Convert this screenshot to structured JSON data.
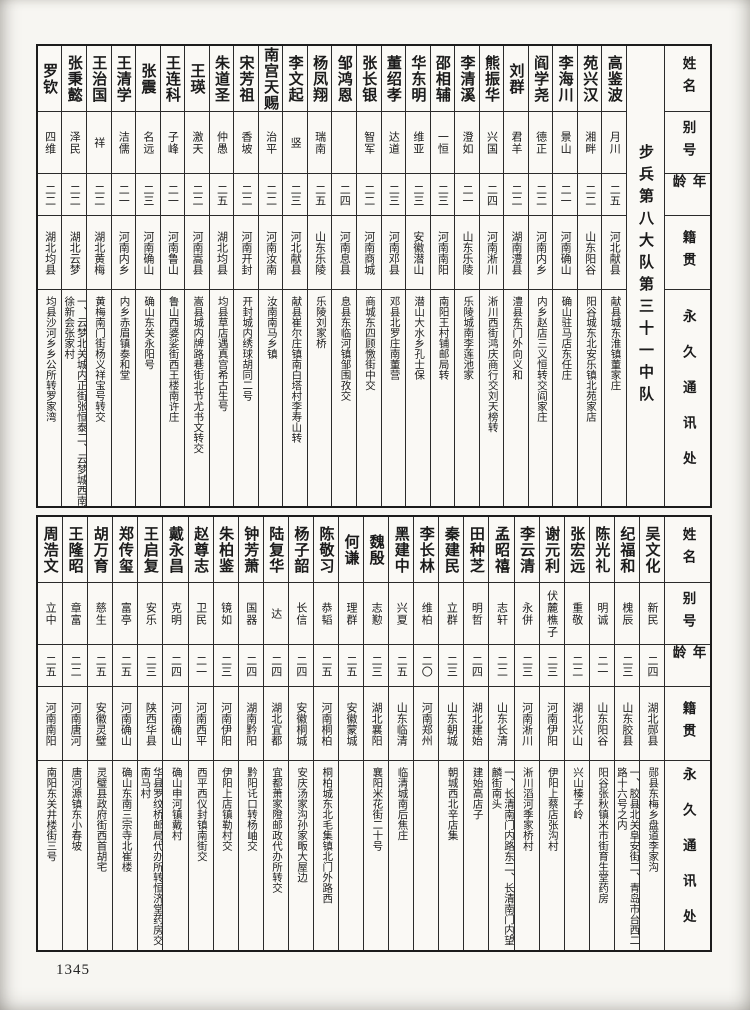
{
  "page": {
    "number": "1345"
  },
  "headers": {
    "name": "姓名",
    "alias": "别号",
    "age": "年龄",
    "native_place": "籍贯",
    "address": "永久通讯处"
  },
  "sections": [
    {
      "title": "步兵第八大队第三十一中队",
      "entries": [
        {
          "name": "高鉴波",
          "alias": "月川",
          "age": "二五",
          "native": "河北献县",
          "address": "献县城东淮镇董家庄"
        },
        {
          "name": "苑兴汉",
          "alias": "湘畔",
          "age": "二二",
          "native": "山东阳谷",
          "address": "阳谷城东北安乐镇北苑家店"
        },
        {
          "name": "李海川",
          "alias": "景山",
          "age": "二一",
          "native": "河南确山",
          "address": "确山驻马店东任庄"
        },
        {
          "name": "阎学尧",
          "alias": "德正",
          "age": "二二",
          "native": "河南内乡",
          "address": "内乡赵店三义恒转交阎家庄"
        },
        {
          "name": "刘群",
          "alias": "君羊",
          "age": "二二",
          "native": "湖南澧县",
          "address": "澧县东门外向义和"
        },
        {
          "name": "熊振华",
          "alias": "兴国",
          "age": "二四",
          "native": "河南淅川",
          "address": "淅川西街鸿庆商行交刘天榜转"
        },
        {
          "name": "李清溪",
          "alias": "澄如",
          "age": "二一",
          "native": "山东乐陵",
          "address": "乐陵城南李莲池家"
        },
        {
          "name": "邵相辅",
          "alias": "一恒",
          "age": "二三",
          "native": "河南南阳",
          "address": "南阳王村铺邮局转"
        },
        {
          "name": "华东明",
          "alias": "维亚",
          "age": "二三",
          "native": "安徽潜山",
          "address": "潜山大水乡孔士保"
        },
        {
          "name": "董绍孝",
          "alias": "达道",
          "age": "二三",
          "native": "河南邓县",
          "address": "邓县北罗庄南董营"
        },
        {
          "name": "张长银",
          "alias": "智军",
          "age": "二二",
          "native": "河南商城",
          "address": "商城东四顾憿街中交"
        },
        {
          "name": "邹鸿恩",
          "alias": "",
          "age": "二四",
          "native": "河南息县",
          "address": "息县东临河镇邹围孜交"
        },
        {
          "name": "杨凤翔",
          "alias": "瑞南",
          "age": "二五",
          "native": "山东乐陵",
          "address": "乐陵刘家桥"
        },
        {
          "name": "李文起",
          "alias": "竖",
          "age": "二三",
          "native": "河北献县",
          "address": "献县崔尔庄镇南白塔村李寿山转"
        },
        {
          "name": "南宫天赐",
          "alias": "治平",
          "age": "二二",
          "native": "河南汝南",
          "address": "汝南南马乡镇"
        },
        {
          "name": "宋芳祖",
          "alias": "香坡",
          "age": "二二",
          "native": "河南开封",
          "address": "开封城内绣球胡同二号"
        },
        {
          "name": "朱道圣",
          "alias": "仲愚",
          "age": "二五",
          "native": "湖北均县",
          "address": "均县草店遇真宫希古生号"
        },
        {
          "name": "王瑛",
          "alias": "激天",
          "age": "二二",
          "native": "河南嵩县",
          "address": "嵩县城内牌路巷街北节尤书文转交"
        },
        {
          "name": "王连科",
          "alias": "子峰",
          "age": "二一",
          "native": "河南鲁山",
          "address": "鲁山西婆娑街西王楼南许庄"
        },
        {
          "name": "张震",
          "alias": "名远",
          "age": "二三",
          "native": "河南确山",
          "address": "确山东关永阳号"
        },
        {
          "name": "王清学",
          "alias": "洁儒",
          "age": "二一",
          "native": "河南内乡",
          "address": "内乡赤眉镇泰和堂"
        },
        {
          "name": "王治国",
          "alias": "祥",
          "age": "二二",
          "native": "湖北黄梅",
          "address": "黄梅南门街杨义祥宝号转交"
        },
        {
          "name": "张秉懿",
          "alias": "泽民",
          "age": "二二",
          "native": "湖北云梦",
          "address": "一、云梦北关城内正街张恒泰二、云梦城西南徐新会张家村"
        },
        {
          "name": "罗钦",
          "alias": "四维",
          "age": "二二",
          "native": "湖北均县",
          "address": "均县沙河乡乡公所转罗家湾"
        }
      ]
    },
    {
      "title": "",
      "entries": [
        {
          "name": "吴文化",
          "alias": "新民",
          "age": "二四",
          "native": "湖北郧县",
          "address": "郧县东梅乡盘道李家沟"
        },
        {
          "name": "纪福和",
          "alias": "槐辰",
          "age": "二三",
          "native": "山东胶县",
          "address": "一、胶县北关阜安街二、青岛市台西二路十六号之内"
        },
        {
          "name": "陈光礼",
          "alias": "明诚",
          "age": "二一",
          "native": "山东阳谷",
          "address": "阳谷张秋镇米市街育生堂药房"
        },
        {
          "name": "张宏远",
          "alias": "重敬",
          "age": "二二",
          "native": "湖北兴山",
          "address": "兴山榛子岭"
        },
        {
          "name": "谢元利",
          "alias": "伏麓樵子",
          "age": "二三",
          "native": "河南伊阳",
          "address": "伊阳上蔡店张沟村"
        },
        {
          "name": "李云清",
          "alias": "永併",
          "age": "二三",
          "native": "河南淅川",
          "address": "淅川滔河季家桥村"
        },
        {
          "name": "孟昭禧",
          "alias": "志轩",
          "age": "二二",
          "native": "山东长清",
          "address": "一、长清南门内路东二、长清南门内望麟街南头"
        },
        {
          "name": "田种芝",
          "alias": "明哲",
          "age": "二四",
          "native": "湖北建始",
          "address": "建始高店子"
        },
        {
          "name": "秦建民",
          "alias": "立群",
          "age": "二三",
          "native": "山东朝城",
          "address": "朝城西北辛店集"
        },
        {
          "name": "李长林",
          "alias": "维柏",
          "age": "二〇",
          "native": "河南郑州",
          "address": ""
        },
        {
          "name": "黑建中",
          "alias": "兴夏",
          "age": "二五",
          "native": "山东临清",
          "address": "临清城南后焦庄"
        },
        {
          "name": "魏殷",
          "alias": "志懃",
          "age": "二三",
          "native": "湖北襄阳",
          "address": "襄阳米花街二十号"
        },
        {
          "name": "何谦",
          "alias": "理群",
          "age": "二五",
          "native": "安徽蒙城",
          "address": ""
        },
        {
          "name": "陈敬习",
          "alias": "恭韬",
          "age": "二五",
          "native": "河南桐柏",
          "address": "桐柏城东北毛集镇北门外路西"
        },
        {
          "name": "杨子韶",
          "alias": "长信",
          "age": "二四",
          "native": "安徽桐城",
          "address": "安庆汤家沟孙家畈大屋边"
        },
        {
          "name": "陆复华",
          "alias": "达",
          "age": "二四",
          "native": "湖北宜都",
          "address": "宜都萧家隥邮政代办所转交"
        },
        {
          "name": "钟芳萧",
          "alias": "国器",
          "age": "二四",
          "native": "湖南黔阳",
          "address": "黔阳讬口转杨岫交"
        },
        {
          "name": "朱柏鉴",
          "alias": "镜如",
          "age": "二三",
          "native": "河南伊阳",
          "address": "伊阳上店镇勒村交"
        },
        {
          "name": "赵尊志",
          "alias": "卫民",
          "age": "二一",
          "native": "河南西平",
          "address": "西平西仪封镇南街交"
        },
        {
          "name": "戴永昌",
          "alias": "克明",
          "age": "二四",
          "native": "河南确山",
          "address": "确山申河镇戴村"
        },
        {
          "name": "王启复",
          "alias": "安乐",
          "age": "二三",
          "native": "陕西华县",
          "address": "华县罗纹桥邮局代办所转恒济堂药房交南马村"
        },
        {
          "name": "郑传玺",
          "alias": "富亭",
          "age": "二五",
          "native": "河南确山",
          "address": "确山东南三宗寺北崔楼"
        },
        {
          "name": "胡万育",
          "alias": "慈生",
          "age": "二五",
          "native": "安徽灵璧",
          "address": "灵璧县政府街西首胡宅"
        },
        {
          "name": "王隆昭",
          "alias": "章富",
          "age": "二二",
          "native": "河南唐河",
          "address": "唐河源镇东小春坡"
        },
        {
          "name": "周浩文",
          "alias": "立中",
          "age": "二五",
          "native": "河南南阳",
          "address": "南阳东关井楼街三号"
        }
      ]
    }
  ]
}
